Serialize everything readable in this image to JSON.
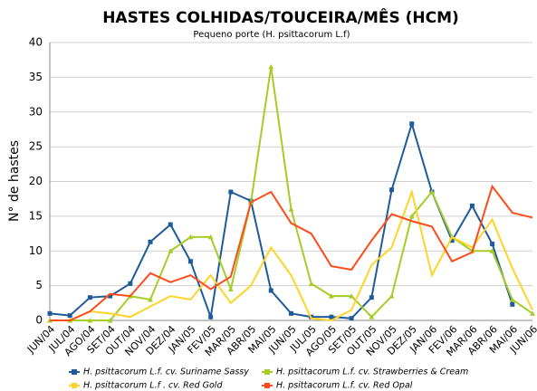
{
  "chart_data": {
    "type": "line",
    "title": "HASTES COLHIDAS/TOUCEIRA/MÊS (HCM)",
    "subtitle": "Pequeno porte (H. psittacorum L.f)",
    "y_label": "N° de hastes",
    "categories": [
      "JUN/04",
      "JUL/04",
      "AGO/04",
      "SET/04",
      "OUT/04",
      "NOV/04",
      "DEZ/04",
      "JAN/05",
      "FEV/05",
      "MAR/05",
      "ABR/05",
      "MAI/05",
      "JUN/05",
      "JUL/05",
      "AGO/05",
      "SET/05",
      "OUT/05",
      "NOV/05",
      "DEZ/05",
      "JAN/06",
      "FEV/06",
      "MAR/06",
      "ABR/06",
      "MAI/06",
      "JUN/06"
    ],
    "series": [
      {
        "name": "H. psittacorum L.f. cv. Suriname Sassy",
        "color": "#1f5b99",
        "marker": "square",
        "values": [
          1,
          0.7,
          3.3,
          3.5,
          5.3,
          11.3,
          13.8,
          8.5,
          0.5,
          18.5,
          17.2,
          4.3,
          1,
          0.5,
          0.5,
          0.3,
          3.3,
          18.8,
          28.3,
          18.5,
          11.5,
          16.5,
          11,
          2.3,
          null
        ]
      },
      {
        "name": "H. psittacorum L.f. cv. Strawberries & Cream",
        "color": "#a6cc28",
        "marker": "triangle",
        "values": [
          0,
          0,
          0,
          0,
          3.5,
          3,
          10,
          12,
          12,
          4.5,
          17,
          36.5,
          16,
          5.3,
          3.5,
          3.5,
          0.5,
          3.5,
          15,
          18.5,
          12,
          10,
          10,
          3,
          1
        ]
      },
      {
        "name": "H. psittacorum L.f . cv. Red Gold",
        "color": "#ffd428",
        "marker": "none",
        "values": [
          0,
          0,
          1.3,
          1,
          0.5,
          2,
          3.5,
          3,
          6.5,
          2.5,
          5,
          10.5,
          6.5,
          0.3,
          0,
          1.5,
          8,
          10.5,
          18.5,
          6.5,
          12,
          10.5,
          14.5,
          7.5,
          1.5
        ]
      },
      {
        "name": "H. psittacorum L.f. cv. Red Opal",
        "color": "#ff4a1a",
        "marker": "none",
        "values": [
          0,
          0,
          1.3,
          3.8,
          3.5,
          6.8,
          5.5,
          6.5,
          4.5,
          6.3,
          17,
          18.5,
          14,
          12.5,
          7.8,
          7.3,
          11.5,
          15.3,
          14.3,
          13.5,
          8.5,
          9.8,
          19.3,
          15.5,
          14.8
        ]
      }
    ],
    "ylim": [
      0,
      40
    ],
    "yticks": [
      0,
      5,
      10,
      15,
      20,
      25,
      30,
      35,
      40
    ],
    "grid": true
  }
}
